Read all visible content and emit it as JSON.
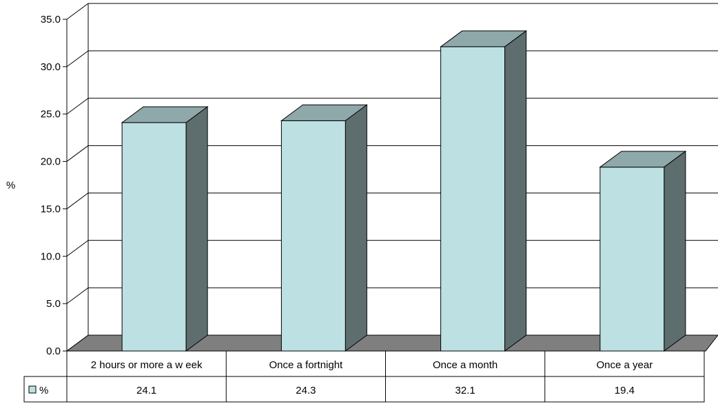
{
  "chart_data": {
    "type": "bar",
    "style": "3d-column",
    "categories": [
      "2 hours or more a w eek",
      "Once a fortnight",
      "Once a month",
      "Once a year"
    ],
    "series": [
      {
        "name": "%",
        "values": [
          24.1,
          24.3,
          32.1,
          19.4
        ],
        "labels": [
          "24.1",
          "24.3",
          "32.1",
          "19.4"
        ]
      }
    ],
    "ylabel": "%",
    "ylim": [
      0,
      35
    ],
    "yticks": [
      "0.0",
      "5.0",
      "10.0",
      "15.0",
      "20.0",
      "25.0",
      "30.0",
      "35.0"
    ],
    "grid": true,
    "legend_placement": "data-table",
    "data_table": true
  },
  "colors": {
    "bar_front": "#bde0e3",
    "bar_top": "#8fa8aa",
    "bar_side": "#5e6e6e",
    "floor": "#7f7f7f",
    "gridline": "#000000",
    "background": "#ffffff"
  }
}
